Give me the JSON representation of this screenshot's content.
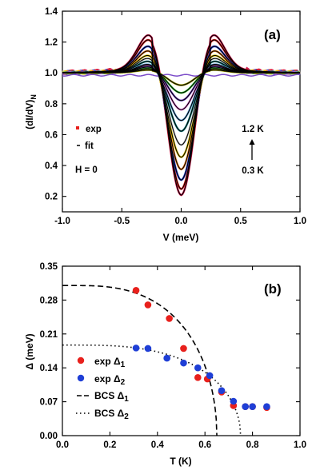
{
  "colors": {
    "fit": "#000000",
    "exp_delta1": "#e8201c",
    "exp_delta2": "#1f3fd6",
    "exp_legend_a": "#e8201c",
    "temperature_palette": [
      "#d01a4e",
      "#e8201c",
      "#1f3fd6",
      "#f07e1a",
      "#e8c800",
      "#c8c8c8",
      "#1a8a8a",
      "#5c9ed6",
      "#e070d0",
      "#7a4ac8",
      "#3acc3a",
      "#9a9a00"
    ]
  },
  "chart_data": [
    {
      "panel": "(a)",
      "type": "line",
      "title": "",
      "xlabel": "V (meV)",
      "ylabel": "(dI/dV)",
      "ylabel_sub": "N",
      "xlim": [
        -1.0,
        1.0
      ],
      "ylim": [
        0.1,
        1.4
      ],
      "xticks": [
        -1.0,
        -0.5,
        0.0,
        0.5,
        1.0
      ],
      "xtick_labels": [
        "-1.0",
        "-0.5",
        "0.0",
        "0.5",
        "1.0"
      ],
      "yticks": [
        0.2,
        0.4,
        0.6,
        0.8,
        1.0,
        1.2,
        1.4
      ],
      "ytick_labels": [
        "0.2",
        "0.4",
        "0.6",
        "0.8",
        "1.0",
        "1.2",
        "1.4"
      ],
      "legend": [
        {
          "marker": "square",
          "label": "exp"
        },
        {
          "marker": "dash",
          "label": "fit"
        }
      ],
      "annotations": {
        "field": "H = 0",
        "temp_high": "1.2 K",
        "temp_low": "0.3 K"
      },
      "series": [
        {
          "min": 0.2,
          "peak": 1.25
        },
        {
          "min": 0.24,
          "peak": 1.22
        },
        {
          "min": 0.3,
          "peak": 1.18
        },
        {
          "min": 0.37,
          "peak": 1.15
        },
        {
          "min": 0.45,
          "peak": 1.12
        },
        {
          "min": 0.53,
          "peak": 1.1
        },
        {
          "min": 0.62,
          "peak": 1.08
        },
        {
          "min": 0.69,
          "peak": 1.06
        },
        {
          "min": 0.76,
          "peak": 1.05
        },
        {
          "min": 0.82,
          "peak": 1.04
        },
        {
          "min": 0.87,
          "peak": 1.03
        },
        {
          "min": 0.92,
          "peak": 1.02
        }
      ]
    },
    {
      "panel": "(b)",
      "type": "scatter",
      "title": "",
      "xlabel": "T (K)",
      "ylabel": "Δ (meV)",
      "xlim": [
        0.0,
        1.0
      ],
      "ylim": [
        0.0,
        0.35
      ],
      "xticks": [
        0.0,
        0.2,
        0.4,
        0.6,
        0.8,
        1.0
      ],
      "xtick_labels": [
        "0.0",
        "0.2",
        "0.4",
        "0.6",
        "0.8",
        "1.0"
      ],
      "yticks": [
        0.0,
        0.07,
        0.14,
        0.21,
        0.28,
        0.35
      ],
      "ytick_labels": [
        "0.00",
        "0.07",
        "0.14",
        "0.21",
        "0.28",
        "0.35"
      ],
      "legend_placement": "bottom-left",
      "series": [
        {
          "name": "exp Δ1",
          "label_base": "exp Δ",
          "label_sub": "1",
          "kind": "points",
          "x": [
            0.31,
            0.36,
            0.45,
            0.51,
            0.57,
            0.61,
            0.67,
            0.72,
            0.77,
            0.8,
            0.86
          ],
          "y": [
            0.3,
            0.27,
            0.242,
            0.18,
            0.12,
            0.117,
            0.09,
            0.062,
            0.06,
            0.06,
            0.058
          ]
        },
        {
          "name": "exp Δ2",
          "label_base": "exp Δ",
          "label_sub": "2",
          "kind": "points",
          "x": [
            0.31,
            0.36,
            0.44,
            0.51,
            0.57,
            0.62,
            0.67,
            0.72,
            0.77,
            0.8,
            0.86
          ],
          "y": [
            0.181,
            0.18,
            0.16,
            0.15,
            0.14,
            0.124,
            0.093,
            0.071,
            0.06,
            0.06,
            0.06
          ]
        },
        {
          "name": "BCS Δ1",
          "label_base": "BCS Δ",
          "label_sub": "1",
          "kind": "bcs",
          "delta0": 0.31,
          "tc": 0.65,
          "dash": "dashed"
        },
        {
          "name": "BCS Δ2",
          "label_base": "BCS Δ",
          "label_sub": "2",
          "kind": "bcs",
          "delta0": 0.187,
          "tc": 0.75,
          "dash": "dotted"
        }
      ]
    }
  ]
}
